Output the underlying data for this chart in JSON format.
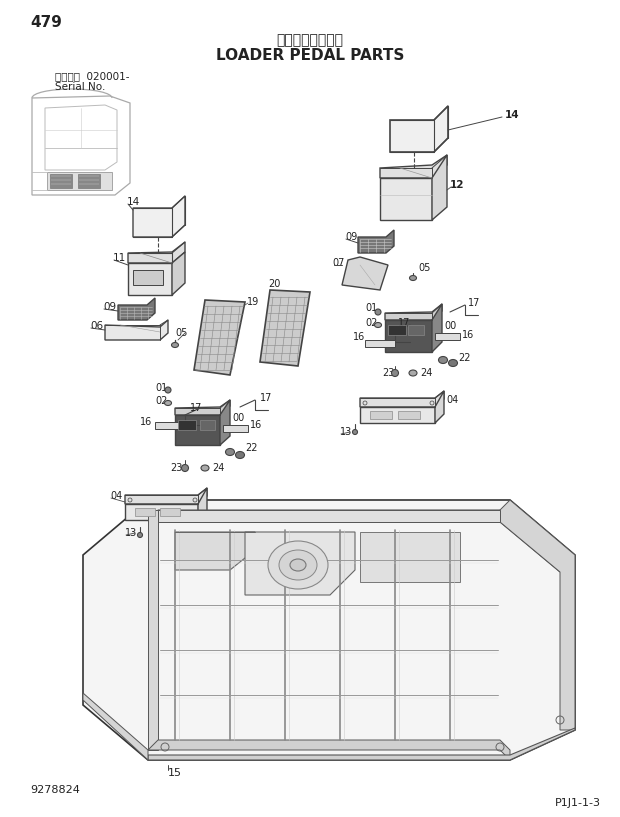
{
  "page_number": "479",
  "title_japanese": "ローダペダル部品",
  "title_english": "LOADER PEDAL PARTS",
  "serial_label": "適用号機  020001-",
  "serial_sub": "Serial No.",
  "diagram_code": "P1J1-1-3",
  "part_number_bottom": "9278824",
  "bg_color": "#ffffff",
  "line_color": "#444444",
  "text_color": "#222222",
  "fig_width": 6.2,
  "fig_height": 8.17,
  "dpi": 100
}
